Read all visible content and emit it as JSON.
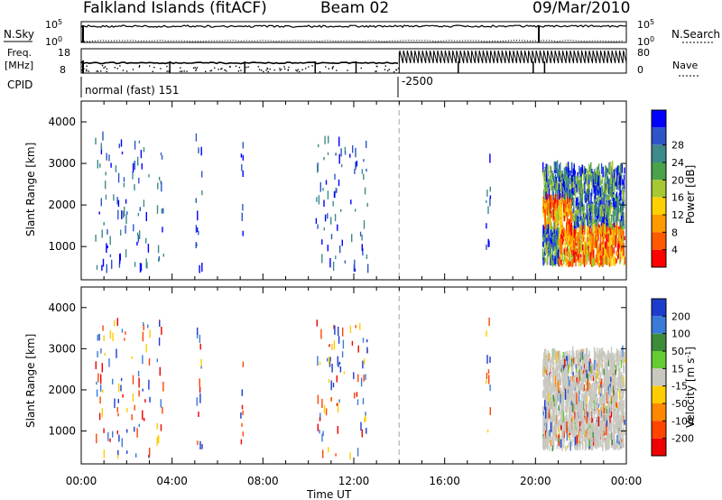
{
  "header": {
    "station": "Falkland Islands (fitACF)",
    "beam": "Beam 02",
    "date": "09/Mar/2010"
  },
  "top_panels": {
    "nsky_label": "N.Sky",
    "nsearch_label": "N.Search",
    "freq_label": "Freq.",
    "freq_unit": "[MHz]",
    "nave_label": "Nave",
    "cpid_label": "CPID",
    "noise_ticks_left": [
      "10^5",
      "10^0"
    ],
    "noise_ticks_right": [
      "10^5",
      "10^0"
    ],
    "freq_ticks": [
      "18",
      "8"
    ],
    "nave_ticks": [
      "80",
      "0"
    ],
    "cpid_segments": [
      {
        "label": "normal (fast) 151",
        "start_hour": 0
      },
      {
        "label": "-2500",
        "start_hour": 14
      }
    ]
  },
  "chart_data": [
    {
      "type": "heatmap",
      "title": "Power",
      "ylabel": "Slant Range [km]",
      "xlabel": "Time UT",
      "xlim": [
        0,
        24
      ],
      "ylim": [
        200,
        4500
      ],
      "x_ticks": [
        "00:00",
        "04:00",
        "08:00",
        "12:00",
        "16:00",
        "20:00",
        "00:00"
      ],
      "y_ticks": [
        "1000",
        "2000",
        "3000",
        "4000"
      ],
      "colorbar": {
        "label": "Power [dB]",
        "ticks": [
          "4",
          "8",
          "12",
          "16",
          "20",
          "24",
          "28"
        ],
        "colors": [
          "#0000ff",
          "#2d55c8",
          "#3f8a8a",
          "#4aa34a",
          "#a6c832",
          "#ffd000",
          "#ff9a00",
          "#ff5a00",
          "#ff0000"
        ]
      },
      "dashed_marker_hour": 14
    },
    {
      "type": "heatmap",
      "title": "Velocity",
      "ylabel": "Slant Range [km]",
      "xlabel": "Time UT",
      "xlim": [
        0,
        24
      ],
      "ylim": [
        200,
        4500
      ],
      "x_ticks": [
        "00:00",
        "04:00",
        "08:00",
        "12:00",
        "16:00",
        "20:00",
        "00:00"
      ],
      "y_ticks": [
        "1000",
        "2000",
        "3000",
        "4000"
      ],
      "colorbar": {
        "label": "Velocity [m s^-1]",
        "ticks": [
          "200",
          "100",
          "50",
          "15",
          "-15",
          "-50",
          "-100",
          "-200"
        ],
        "colors": [
          "#1e3ccc",
          "#3a7ad8",
          "#3c8c3c",
          "#66cc33",
          "#c8c8c0",
          "#ffcc00",
          "#ff8800",
          "#ff4400",
          "#ee0000"
        ]
      },
      "dashed_marker_hour": 14
    }
  ],
  "colors": {
    "axis": "#000000",
    "ground_scatter": "#c8c8c0",
    "dashed_marker": "#c0c0c0"
  }
}
